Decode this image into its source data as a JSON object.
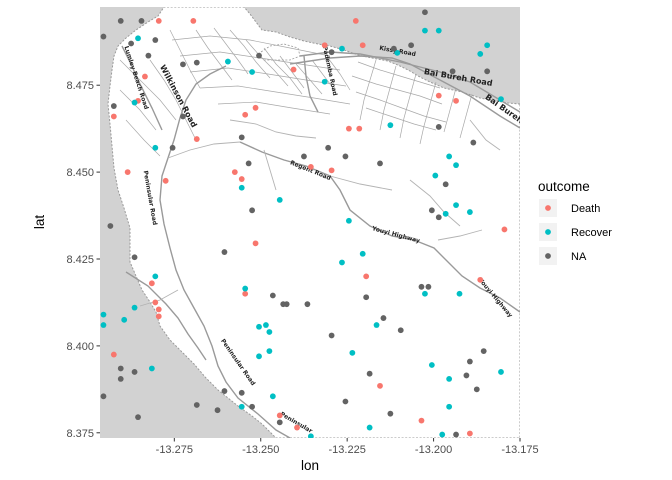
{
  "chart_data": {
    "type": "scatter",
    "xlabel": "lon",
    "ylabel": "lat",
    "xlim": [
      -13.2965,
      -13.175
    ],
    "ylim": [
      8.3735,
      8.4975
    ],
    "x_ticks": [
      -13.275,
      -13.25,
      -13.225,
      -13.2,
      -13.175
    ],
    "x_tick_labels": [
      "-13.275",
      "-13.250",
      "-13.225",
      "-13.200",
      "-13.175"
    ],
    "y_ticks": [
      8.375,
      8.4,
      8.425,
      8.45,
      8.475
    ],
    "y_tick_labels": [
      "8.375",
      "8.400",
      "8.425",
      "8.450",
      "8.475"
    ],
    "legend": {
      "title": "outcome",
      "position": "right",
      "entries": [
        {
          "label": "Death",
          "color": "#F8766D"
        },
        {
          "label": "Recover",
          "color": "#00BFC4"
        },
        {
          "label": "NA",
          "color": "#636363"
        }
      ]
    },
    "basemap_labels": [
      {
        "text": "Bai Bureh Road",
        "lon": -13.193,
        "lat": 8.4765,
        "angle": 10,
        "size": "lg"
      },
      {
        "text": "Bai Bureh Road",
        "lon": -13.177,
        "lat": 8.4655,
        "angle": 35,
        "size": "lg"
      },
      {
        "text": "Kissy Road",
        "lon": -13.2105,
        "lat": 8.4843,
        "angle": 10,
        "size": "sm"
      },
      {
        "text": "Pademba Road",
        "lon": -13.2305,
        "lat": 8.479,
        "angle": 78,
        "size": "sm"
      },
      {
        "text": "Wilkinson Road",
        "lon": -13.2745,
        "lat": 8.4715,
        "angle": 62,
        "size": "lg"
      },
      {
        "text": "Lumley Beach Road",
        "lon": -13.2865,
        "lat": 8.477,
        "angle": 72,
        "size": "sm"
      },
      {
        "text": "Peninsular Road",
        "lon": -13.2825,
        "lat": 8.4425,
        "angle": 80,
        "size": "sm"
      },
      {
        "text": "Regent Road",
        "lon": -13.2358,
        "lat": 8.45,
        "angle": 22,
        "size": "sm"
      },
      {
        "text": "Youyi Highway",
        "lon": -13.211,
        "lat": 8.4315,
        "angle": 15,
        "size": "sm"
      },
      {
        "text": "Youyi Highway",
        "lon": -13.1825,
        "lat": 8.4135,
        "angle": 50,
        "size": "sm"
      },
      {
        "text": "Peninsular Road",
        "lon": -13.257,
        "lat": 8.395,
        "angle": 55,
        "size": "sm"
      },
      {
        "text": "Peninsular",
        "lon": -13.24,
        "lat": 8.3775,
        "angle": 30,
        "size": "sm"
      }
    ],
    "series": [
      {
        "name": "Death",
        "color": "#F8766D",
        "points": [
          [
            -13.2225,
            8.4985
          ],
          [
            -13.2695,
            8.4935
          ],
          [
            -13.2795,
            8.4935
          ],
          [
            -13.2225,
            8.4935
          ],
          [
            -13.2405,
            8.4795
          ],
          [
            -13.2835,
            8.4775
          ],
          [
            -13.2315,
            8.4865
          ],
          [
            -13.2205,
            8.4865
          ],
          [
            -13.2515,
            8.4685
          ],
          [
            -13.2545,
            8.4665
          ],
          [
            -13.2245,
            8.4625
          ],
          [
            -13.2215,
            8.4625
          ],
          [
            -13.2925,
            8.466
          ],
          [
            -13.2685,
            8.4595
          ],
          [
            -13.2295,
            8.4505
          ],
          [
            -13.2355,
            8.4515
          ],
          [
            -13.2885,
            8.45
          ],
          [
            -13.2575,
            8.45
          ],
          [
            -13.2555,
            8.448
          ],
          [
            -13.2775,
            8.4475
          ],
          [
            -13.2855,
            8.4705
          ],
          [
            -13.2515,
            8.4295
          ],
          [
            -13.2195,
            8.42
          ],
          [
            -13.2815,
            8.418
          ],
          [
            -13.2805,
            8.4125
          ],
          [
            -13.2795,
            8.4105
          ],
          [
            -13.2795,
            8.4085
          ],
          [
            -13.2545,
            8.415
          ],
          [
            -13.2925,
            8.3975
          ],
          [
            -13.2155,
            8.3885
          ],
          [
            -13.2445,
            8.38
          ],
          [
            -13.2395,
            8.3765
          ],
          [
            -13.2035,
            8.3785
          ],
          [
            -13.1895,
            8.3748
          ],
          [
            -13.1865,
            8.419
          ],
          [
            -13.1795,
            8.4335
          ],
          [
            -13.1935,
            8.4705
          ],
          [
            -13.1985,
            8.472
          ]
        ]
      },
      {
        "name": "Recover",
        "color": "#00BFC4",
        "points": [
          [
            -13.2855,
            8.4885
          ],
          [
            -13.2595,
            8.4818
          ],
          [
            -13.2525,
            8.4788
          ],
          [
            -13.2315,
            8.476
          ],
          [
            -13.2105,
            8.4843
          ],
          [
            -13.2265,
            8.4855
          ],
          [
            -13.2025,
            8.4907
          ],
          [
            -13.1985,
            8.4907
          ],
          [
            -13.1845,
            8.4865
          ],
          [
            -13.1865,
            8.484
          ],
          [
            -13.1805,
            8.471
          ],
          [
            -13.2865,
            8.47
          ],
          [
            -13.2125,
            8.4635
          ],
          [
            -13.2805,
            8.457
          ],
          [
            -13.1955,
            8.4545
          ],
          [
            -13.1935,
            8.452
          ],
          [
            -13.1995,
            8.449
          ],
          [
            -13.1965,
            8.438
          ],
          [
            -13.1935,
            8.4405
          ],
          [
            -13.2445,
            8.442
          ],
          [
            -13.2245,
            8.436
          ],
          [
            -13.1895,
            8.4385
          ],
          [
            -13.2205,
            8.4265
          ],
          [
            -13.2265,
            8.424
          ],
          [
            -13.2805,
            8.42
          ],
          [
            -13.2955,
            8.409
          ],
          [
            -13.2955,
            8.406
          ],
          [
            -13.2865,
            8.411
          ],
          [
            -13.2895,
            8.4075
          ],
          [
            -13.2545,
            8.4165
          ],
          [
            -13.2505,
            8.4055
          ],
          [
            -13.2485,
            8.406
          ],
          [
            -13.2475,
            8.404
          ],
          [
            -13.2475,
            8.3985
          ],
          [
            -13.2505,
            8.397
          ],
          [
            -13.2235,
            8.398
          ],
          [
            -13.2025,
            8.415
          ],
          [
            -13.1925,
            8.415
          ],
          [
            -13.2165,
            8.406
          ],
          [
            -13.2005,
            8.3945
          ],
          [
            -13.1955,
            8.3905
          ],
          [
            -13.1955,
            8.3825
          ],
          [
            -13.1975,
            8.3745
          ],
          [
            -13.1805,
            8.3925
          ],
          [
            -13.2465,
            8.3855
          ],
          [
            -13.2555,
            8.3825
          ],
          [
            -13.2355,
            8.374
          ],
          [
            -13.2185,
            8.3765
          ],
          [
            -13.2555,
            8.4455
          ],
          [
            -13.2815,
            8.3935
          ]
        ]
      },
      {
        "name": "NA",
        "color": "#636363",
        "points": [
          [
            -13.2955,
            8.489
          ],
          [
            -13.2905,
            8.4935
          ],
          [
            -13.2845,
            8.4935
          ],
          [
            -13.2805,
            8.488
          ],
          [
            -13.2875,
            8.487
          ],
          [
            -13.2995,
            8.484
          ],
          [
            -13.2685,
            8.4815
          ],
          [
            -13.2725,
            8.481
          ],
          [
            -13.2925,
            8.469
          ],
          [
            -13.2725,
            8.466
          ],
          [
            -13.2755,
            8.457
          ],
          [
            -13.2025,
            8.496
          ],
          [
            -13.2065,
            8.4865
          ],
          [
            -13.2115,
            8.4855
          ],
          [
            -13.2295,
            8.4845
          ],
          [
            -13.2505,
            8.4835
          ],
          [
            -13.1985,
            8.463
          ],
          [
            -13.2555,
            8.46
          ],
          [
            -13.2535,
            8.4525
          ],
          [
            -13.2375,
            8.4545
          ],
          [
            -13.2305,
            8.457
          ],
          [
            -13.2155,
            8.4525
          ],
          [
            -13.1965,
            8.4465
          ],
          [
            -13.2255,
            8.4545
          ],
          [
            -13.1885,
            8.4585
          ],
          [
            -13.1845,
            8.479
          ],
          [
            -13.1945,
            8.479
          ],
          [
            -13.2825,
            8.4835
          ],
          [
            -13.2005,
            8.439
          ],
          [
            -13.2035,
            8.417
          ],
          [
            -13.2015,
            8.417
          ],
          [
            -13.1985,
            8.437
          ],
          [
            -13.2525,
            8.439
          ],
          [
            -13.2605,
            8.427
          ],
          [
            -13.2865,
            8.4255
          ],
          [
            -13.2935,
            8.4345
          ],
          [
            -13.2435,
            8.412
          ],
          [
            -13.2425,
            8.412
          ],
          [
            -13.2365,
            8.412
          ],
          [
            -13.2195,
            8.414
          ],
          [
            -13.2295,
            8.403
          ],
          [
            -13.2145,
            8.408
          ],
          [
            -13.2095,
            8.4045
          ],
          [
            -13.1855,
            8.3985
          ],
          [
            -13.1895,
            8.3955
          ],
          [
            -13.1875,
            8.3875
          ],
          [
            -13.2185,
            8.392
          ],
          [
            -13.2255,
            8.384
          ],
          [
            -13.2125,
            8.3805
          ],
          [
            -13.2555,
            8.3865
          ],
          [
            -13.2605,
            8.387
          ],
          [
            -13.2525,
            8.3825
          ],
          [
            -13.2865,
            8.3925
          ],
          [
            -13.2905,
            8.3935
          ],
          [
            -13.2905,
            8.3905
          ],
          [
            -13.2955,
            8.3855
          ],
          [
            -13.2855,
            8.3795
          ],
          [
            -13.2625,
            8.3815
          ],
          [
            -13.2685,
            8.383
          ],
          [
            -13.2445,
            8.378
          ],
          [
            -13.1935,
            8.3745
          ],
          [
            -13.1905,
            8.3915
          ],
          [
            -13.2465,
            8.4145
          ]
        ]
      }
    ]
  }
}
